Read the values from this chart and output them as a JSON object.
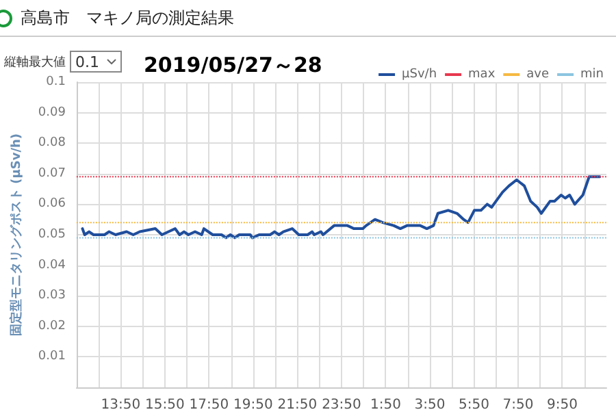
{
  "chart_data": {
    "type": "line",
    "title": "高島市　マキノ局の測定結果",
    "subtitle": "2019/05/27～28",
    "ylabel": "固定型モニタリングポスト (μSv/h)",
    "annotations": [
      "縦軸最大値",
      "0.1"
    ],
    "xlim": [
      "2019-05-27T11:50",
      "2019-05-28T11:50"
    ],
    "xticks": [
      {
        "value": "2019-05-27T12:50",
        "label": null
      },
      {
        "value": "2019-05-27T13:50",
        "label": "13:50"
      },
      {
        "value": "2019-05-27T14:50",
        "label": null
      },
      {
        "value": "2019-05-27T15:50",
        "label": "15:50"
      },
      {
        "value": "2019-05-27T16:50",
        "label": null
      },
      {
        "value": "2019-05-27T17:50",
        "label": "17:50"
      },
      {
        "value": "2019-05-27T18:50",
        "label": null
      },
      {
        "value": "2019-05-27T19:50",
        "label": "19:50"
      },
      {
        "value": "2019-05-27T20:50",
        "label": null
      },
      {
        "value": "2019-05-27T21:50",
        "label": "21:50"
      },
      {
        "value": "2019-05-27T22:50",
        "label": null
      },
      {
        "value": "2019-05-27T23:50",
        "label": "23:50"
      },
      {
        "value": "2019-05-28T00:50",
        "label": null
      },
      {
        "value": "2019-05-28T01:50",
        "label": "1:50"
      },
      {
        "value": "2019-05-28T02:50",
        "label": null
      },
      {
        "value": "2019-05-28T03:50",
        "label": "3:50"
      },
      {
        "value": "2019-05-28T04:50",
        "label": null
      },
      {
        "value": "2019-05-28T05:50",
        "label": "5:50"
      },
      {
        "value": "2019-05-28T06:50",
        "label": null
      },
      {
        "value": "2019-05-28T07:50",
        "label": "7:50"
      },
      {
        "value": "2019-05-28T08:50",
        "label": null
      },
      {
        "value": "2019-05-28T09:50",
        "label": "9:50"
      },
      {
        "value": "2019-05-28T10:50",
        "label": null
      }
    ],
    "ylim": [
      0,
      0.1
    ],
    "yticks": [
      0.01,
      0.02,
      0.03,
      0.04,
      0.05,
      0.06,
      0.07,
      0.08,
      0.09,
      0.1
    ],
    "grid": true,
    "legend": "top right",
    "marker": "none",
    "line_style": "solid",
    "series": [
      {
        "name": "μSv/h",
        "color": "#1f4e9c",
        "x": [
          "2019-05-27T12:06",
          "2019-05-27T12:12",
          "2019-05-27T12:24",
          "2019-05-27T12:36",
          "2019-05-27T13:06",
          "2019-05-27T13:18",
          "2019-05-27T13:36",
          "2019-05-27T14:06",
          "2019-05-27T14:24",
          "2019-05-27T14:42",
          "2019-05-27T15:24",
          "2019-05-27T15:42",
          "2019-05-27T16:00",
          "2019-05-27T16:18",
          "2019-05-27T16:30",
          "2019-05-27T16:42",
          "2019-05-27T16:54",
          "2019-05-27T17:12",
          "2019-05-27T17:30",
          "2019-05-27T17:36",
          "2019-05-27T18:00",
          "2019-05-27T18:24",
          "2019-05-27T18:36",
          "2019-05-27T18:48",
          "2019-05-27T19:00",
          "2019-05-27T19:12",
          "2019-05-27T19:42",
          "2019-05-27T19:48",
          "2019-05-27T20:06",
          "2019-05-27T20:36",
          "2019-05-27T20:48",
          "2019-05-27T21:00",
          "2019-05-27T21:12",
          "2019-05-27T21:36",
          "2019-05-27T21:54",
          "2019-05-27T22:18",
          "2019-05-27T22:30",
          "2019-05-27T22:36",
          "2019-05-27T22:54",
          "2019-05-27T23:00",
          "2019-05-27T23:30",
          "2019-05-27T23:48",
          "2019-05-28T00:06",
          "2019-05-28T00:24",
          "2019-05-28T00:48",
          "2019-05-28T00:57",
          "2019-05-28T01:21",
          "2019-05-28T01:42",
          "2019-05-28T02:12",
          "2019-05-28T02:30",
          "2019-05-28T02:48",
          "2019-05-28T03:06",
          "2019-05-28T03:24",
          "2019-05-28T03:42",
          "2019-05-28T04:00",
          "2019-05-28T04:12",
          "2019-05-28T04:40",
          "2019-05-28T05:04",
          "2019-05-28T05:22",
          "2019-05-28T05:34",
          "2019-05-28T05:51",
          "2019-05-28T06:09",
          "2019-05-28T06:26",
          "2019-05-28T06:38",
          "2019-05-28T06:50",
          "2019-05-28T07:08",
          "2019-05-28T07:25",
          "2019-05-28T07:46",
          "2019-05-28T08:07",
          "2019-05-28T08:24",
          "2019-05-28T08:42",
          "2019-05-28T08:53",
          "2019-05-28T09:17",
          "2019-05-28T09:29",
          "2019-05-28T09:47",
          "2019-05-28T09:58",
          "2019-05-28T10:10",
          "2019-05-28T10:24",
          "2019-05-28T10:46",
          "2019-05-28T11:03",
          "2019-05-28T11:32"
        ],
        "values": [
          0.052,
          0.05,
          0.051,
          0.05,
          0.05,
          0.051,
          0.05,
          0.051,
          0.05,
          0.051,
          0.052,
          0.05,
          0.051,
          0.052,
          0.05,
          0.051,
          0.05,
          0.051,
          0.05,
          0.052,
          0.05,
          0.05,
          0.049,
          0.05,
          0.049,
          0.05,
          0.05,
          0.049,
          0.05,
          0.05,
          0.051,
          0.05,
          0.051,
          0.052,
          0.05,
          0.05,
          0.051,
          0.05,
          0.051,
          0.05,
          0.053,
          0.053,
          0.053,
          0.052,
          0.052,
          0.053,
          0.055,
          0.054,
          0.053,
          0.052,
          0.053,
          0.053,
          0.053,
          0.052,
          0.053,
          0.057,
          0.058,
          0.057,
          0.055,
          0.054,
          0.058,
          0.058,
          0.06,
          0.059,
          0.061,
          0.064,
          0.066,
          0.068,
          0.066,
          0.061,
          0.059,
          0.057,
          0.061,
          0.061,
          0.063,
          0.062,
          0.063,
          0.06,
          0.063,
          0.069,
          0.069
        ]
      }
    ],
    "ref_lines": [
      {
        "axis": "y",
        "value": 0.069,
        "label": "max",
        "color": "#e8384f",
        "line_style": "dotted"
      },
      {
        "axis": "y",
        "value": 0.054,
        "label": "ave",
        "color": "#f5b942",
        "line_style": "dotted"
      },
      {
        "axis": "y",
        "value": 0.049,
        "label": "min",
        "color": "#8cc4e0",
        "line_style": "dotted"
      }
    ]
  }
}
